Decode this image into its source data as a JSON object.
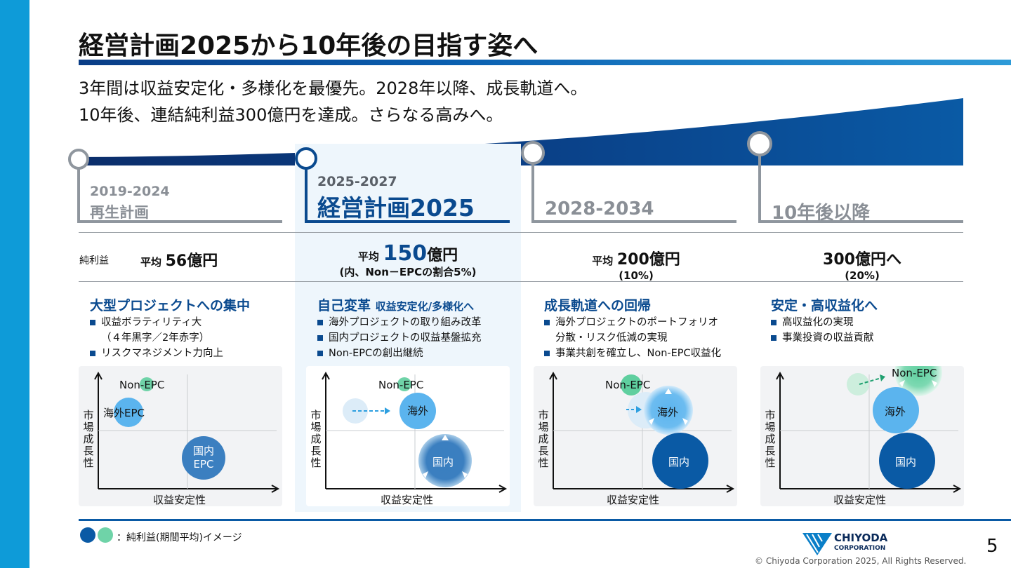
{
  "title": "経営計画2025から10年後の目指す姿へ",
  "subtitle_lines": [
    "3年間は収益安定化・多様化を最優先。2028年以降、成長軌道へ。",
    "10年後、連結純利益300億円を達成。さらなる高みへ。"
  ],
  "phases": [
    {
      "period": "2019-2024",
      "name": "再生計画"
    },
    {
      "period": "2025-2027",
      "name": "経営計画2025"
    },
    {
      "period": "2028-2034"
    },
    {
      "period": "10年後以降"
    }
  ],
  "net_profit_label": "純利益",
  "profits": [
    {
      "prefix": "平均",
      "value": "56億円",
      "note": ""
    },
    {
      "prefix": "平均",
      "value": "150",
      "unit": "億円",
      "note": "(内、Non－EPCの割合5%)"
    },
    {
      "prefix": "平均",
      "value": "200億円",
      "note": "(10%)"
    },
    {
      "prefix": "",
      "value": "300億円へ",
      "note": "(20%)"
    }
  ],
  "sections": [
    {
      "title": "大型プロジェクトへの集中",
      "title_sub": "",
      "bullets": [
        "収益ボラティリティ大",
        "リスクマネジメント力向上"
      ],
      "bullet_conts": [
        "（４年黒字／2年赤字）"
      ]
    },
    {
      "title": "自己変革",
      "title_sub": "収益安定化/多様化へ",
      "bullets": [
        "海外プロジェクトの取り組み改革",
        "国内プロジェクトの収益基盤拡充",
        "Non-EPCの創出継続"
      ]
    },
    {
      "title": "成長軌道への回帰",
      "title_sub": "",
      "bullets": [
        "海外プロジェクトのポートフォリオ",
        "事業共創を確立し、Non-EPC収益化"
      ],
      "bullet_conts": [
        "分散・リスク低減の実現"
      ]
    },
    {
      "title": "安定・高収益化へ",
      "title_sub": "",
      "bullets": [
        "高収益化の実現",
        "事業投資の収益貢献"
      ]
    }
  ],
  "charts": {
    "y_label": "市場成長性",
    "x_label": "収益安定性",
    "c1": {
      "nonepc": "Non-EPC",
      "kaigai": "海外EPC",
      "kokunai_1": "国内",
      "kokunai_2": "EPC"
    },
    "c2": {
      "nonepc": "Non-EPC",
      "kaigai": "海外",
      "kokunai": "国内"
    },
    "c3": {
      "nonepc": "Non-EPC",
      "kaigai": "海外",
      "kokunai": "国内"
    },
    "c4": {
      "nonepc": "Non-EPC",
      "kaigai": "海外",
      "kokunai": "国内"
    }
  },
  "legend": "：純利益(期間平均)イメージ",
  "logo": {
    "line1": "CHIYODA",
    "line2": "CORPORATION"
  },
  "copyright": "© Chiyoda Corporation 2025, All Rights Reserved.",
  "page_number": "5",
  "colors": {
    "dark_blue": "#0a4a8f",
    "navy": "#0a5aa5",
    "light_blue": "#5bb4ee",
    "mint": "#5fcf9f",
    "steel": "#3b7fc0",
    "gray_line": "#8f969e",
    "accent_bar": "#0e9bd8"
  }
}
